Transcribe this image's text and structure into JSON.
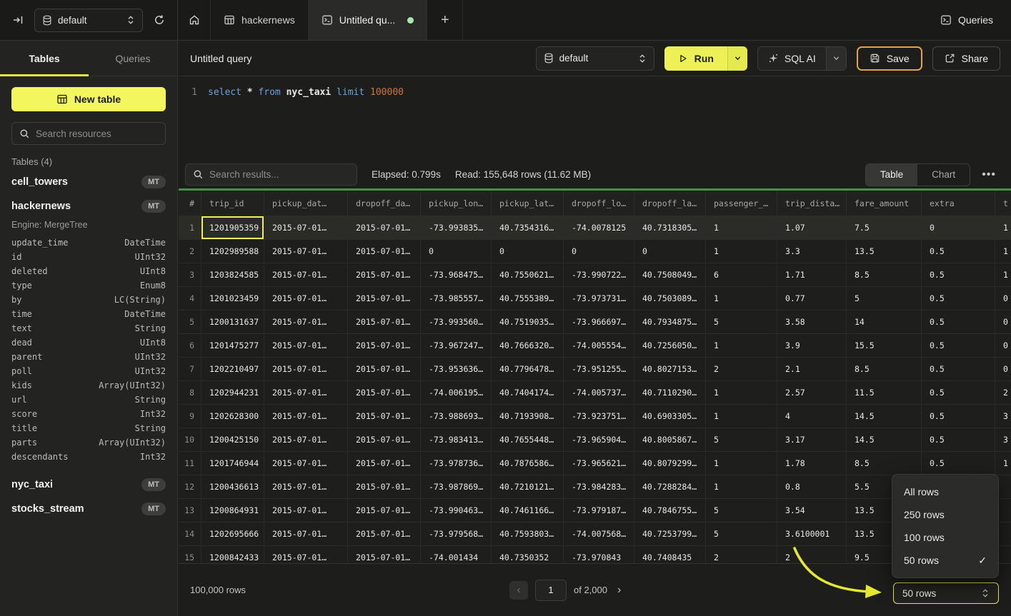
{
  "topbar": {
    "database": "default",
    "tabs": [
      {
        "label": "hackernews",
        "icon": "table-grid",
        "active": false
      },
      {
        "label": "Untitled qu...",
        "icon": "terminal",
        "active": true,
        "unsaved_dot": true
      }
    ],
    "new_tab_label": "+",
    "queries_label": "Queries"
  },
  "sidebar": {
    "tabs": [
      {
        "label": "Tables",
        "active": true
      },
      {
        "label": "Queries",
        "active": false
      }
    ],
    "new_table_label": "New table",
    "search_placeholder": "Search resources",
    "section_label": "Tables (4)",
    "tables": [
      {
        "name": "cell_towers",
        "badge": "MT"
      },
      {
        "name": "hackernews",
        "badge": "MT",
        "engine_label": "Engine: MergeTree",
        "schema": [
          [
            "update_time",
            "DateTime"
          ],
          [
            "id",
            "UInt32"
          ],
          [
            "deleted",
            "UInt8"
          ],
          [
            "type",
            "Enum8"
          ],
          [
            "by",
            "LC(String)"
          ],
          [
            "time",
            "DateTime"
          ],
          [
            "text",
            "String"
          ],
          [
            "dead",
            "UInt8"
          ],
          [
            "parent",
            "UInt32"
          ],
          [
            "poll",
            "UInt32"
          ],
          [
            "kids",
            "Array(UInt32)"
          ],
          [
            "url",
            "String"
          ],
          [
            "score",
            "Int32"
          ],
          [
            "title",
            "String"
          ],
          [
            "parts",
            "Array(UInt32)"
          ],
          [
            "descendants",
            "Int32"
          ]
        ]
      },
      {
        "name": "nyc_taxi",
        "badge": "MT"
      },
      {
        "name": "stocks_stream",
        "badge": "MT"
      }
    ]
  },
  "query_panel": {
    "title": "Untitled query",
    "database": "default",
    "run_label": "Run",
    "sql_ai_label": "SQL AI",
    "save_label": "Save",
    "share_label": "Share",
    "editor": {
      "line_number": "1",
      "tokens": [
        {
          "text": "select ",
          "type": "kw"
        },
        {
          "text": "* ",
          "type": "op"
        },
        {
          "text": "from ",
          "type": "kw"
        },
        {
          "text": "nyc_taxi ",
          "type": "ident"
        },
        {
          "text": "limit ",
          "type": "kw"
        },
        {
          "text": "100000",
          "type": "num"
        }
      ]
    }
  },
  "results": {
    "search_placeholder": "Search results...",
    "elapsed": "Elapsed: 0.799s",
    "read": "Read: 155,648 rows (11.62 MB)",
    "views": [
      {
        "label": "Table",
        "active": true
      },
      {
        "label": "Chart",
        "active": false
      }
    ],
    "more_label": "•••",
    "table": {
      "columns": [
        "#",
        "trip_id",
        "pickup_dat…",
        "dropoff_da…",
        "pickup_lon…",
        "pickup_lat…",
        "dropoff_lo…",
        "dropoff_la…",
        "passenger_…",
        "trip_dista…",
        "fare_amount",
        "extra",
        "t"
      ],
      "selected_cell": {
        "row": 1,
        "column": "trip_id"
      },
      "rows": [
        [
          "1201905359",
          "2015-07-01…",
          "2015-07-01…",
          "-73.993835…",
          "40.7354316…",
          "-74.0078125",
          "40.7318305…",
          "1",
          "1.07",
          "7.5",
          "0",
          "1"
        ],
        [
          "1202989588",
          "2015-07-01…",
          "2015-07-01…",
          "0",
          "0",
          "0",
          "0",
          "1",
          "3.3",
          "13.5",
          "0.5",
          "1"
        ],
        [
          "1203824585",
          "2015-07-01…",
          "2015-07-01…",
          "-73.968475…",
          "40.7550621…",
          "-73.990722…",
          "40.7508049…",
          "6",
          "1.71",
          "8.5",
          "0.5",
          "1"
        ],
        [
          "1201023459",
          "2015-07-01…",
          "2015-07-01…",
          "-73.985557…",
          "40.7555389…",
          "-73.973731…",
          "40.7503089…",
          "1",
          "0.77",
          "5",
          "0.5",
          "0"
        ],
        [
          "1200131637",
          "2015-07-01…",
          "2015-07-01…",
          "-73.993560…",
          "40.7519035…",
          "-73.966697…",
          "40.7934875…",
          "5",
          "3.58",
          "14",
          "0.5",
          "0"
        ],
        [
          "1201475277",
          "2015-07-01…",
          "2015-07-01…",
          "-73.967247…",
          "40.7666320…",
          "-74.005554…",
          "40.7256050…",
          "1",
          "3.9",
          "15.5",
          "0.5",
          "0"
        ],
        [
          "1202210497",
          "2015-07-01…",
          "2015-07-01…",
          "-73.953636…",
          "40.7796478…",
          "-73.951255…",
          "40.8027153…",
          "2",
          "2.1",
          "8.5",
          "0.5",
          "0"
        ],
        [
          "1202944231",
          "2015-07-01…",
          "2015-07-01…",
          "-74.006195…",
          "40.7404174…",
          "-74.005737…",
          "40.7110290…",
          "1",
          "2.57",
          "11.5",
          "0.5",
          "2"
        ],
        [
          "1202628300",
          "2015-07-01…",
          "2015-07-01…",
          "-73.988693…",
          "40.7193908…",
          "-73.923751…",
          "40.6903305…",
          "1",
          "4",
          "14.5",
          "0.5",
          "3"
        ],
        [
          "1200425150",
          "2015-07-01…",
          "2015-07-01…",
          "-73.983413…",
          "40.7655448…",
          "-73.965904…",
          "40.8005867…",
          "5",
          "3.17",
          "14.5",
          "0.5",
          "3"
        ],
        [
          "1201746944",
          "2015-07-01…",
          "2015-07-01…",
          "-73.978736…",
          "40.7876586…",
          "-73.965621…",
          "40.8079299…",
          "1",
          "1.78",
          "8.5",
          "0.5",
          "1"
        ],
        [
          "1200436613",
          "2015-07-01…",
          "2015-07-01…",
          "-73.987869…",
          "40.7210121…",
          "-73.984283…",
          "40.7288284…",
          "1",
          "0.8",
          "5.5",
          "",
          ""
        ],
        [
          "1200864931",
          "2015-07-01…",
          "2015-07-01…",
          "-73.990463…",
          "40.7461166…",
          "-73.979187…",
          "40.7846755…",
          "5",
          "3.54",
          "13.5",
          "",
          ""
        ],
        [
          "1202695666",
          "2015-07-01…",
          "2015-07-01…",
          "-73.979568…",
          "40.7593803…",
          "-74.007568…",
          "40.7253799…",
          "5",
          "3.6100001",
          "13.5",
          "",
          ""
        ],
        [
          "1200842433",
          "2015-07-01…",
          "2015-07-01…",
          "-74.001434",
          "40.7350352",
          "-73.970843",
          "40.7408435",
          "2",
          "2",
          "9.5",
          "",
          ""
        ]
      ]
    },
    "footer": {
      "total_rows": "100,000 rows",
      "prev_label": "‹",
      "page_value": "1",
      "of_label": "of 2,000",
      "next_label": "›",
      "page_size_value": "50 rows"
    },
    "page_size_menu": {
      "items": [
        {
          "label": "All rows",
          "checked": false
        },
        {
          "label": "250 rows",
          "checked": false
        },
        {
          "label": "100 rows",
          "checked": false
        },
        {
          "label": "50 rows",
          "checked": true
        }
      ]
    }
  },
  "annotation": {
    "type": "hand-drawn-arrow",
    "points_to": "page-size-select",
    "color": "#e3e82e"
  },
  "icons": {
    "expand-sidebar": "arrow-to-bar",
    "database": "cylinder",
    "refresh": "circular-arrow",
    "home": "house",
    "table-grid": "grid",
    "terminal": "console-window",
    "search": "magnifier",
    "play": "triangle-outline",
    "sparkles": "four-point-star",
    "save": "floppy-disk",
    "share": "box-arrow-out",
    "chevron-down": "v",
    "updown": "double-chevron",
    "check": "✓"
  }
}
